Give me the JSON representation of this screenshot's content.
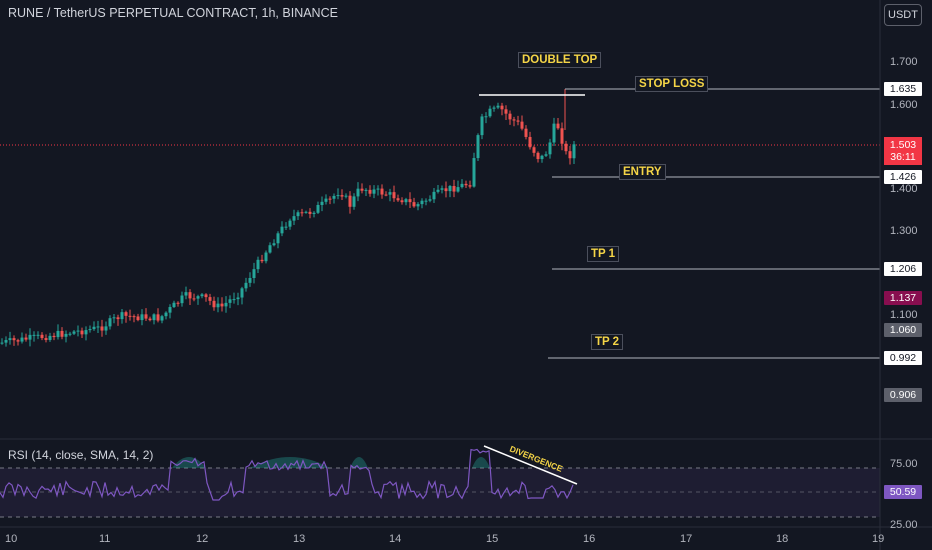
{
  "header": {
    "title": "RUNE / TetherUS PERPETUAL CONTRACT, 1h, BINANCE",
    "currency_button": "USDT"
  },
  "annotations": {
    "double_top": "DOUBLE TOP",
    "stop_loss": "STOP LOSS",
    "entry": "ENTRY",
    "tp1": "TP 1",
    "tp2": "TP 2",
    "divergence": "DIVERGENCE"
  },
  "price_axis": {
    "ticks": [
      "1.700",
      "1.600",
      "1.400",
      "1.300",
      "1.100"
    ],
    "labels": {
      "stop_loss": "1.635",
      "current": "1.503",
      "countdown": "36:11",
      "entry": "1.426",
      "tp1": "1.206",
      "marker_1137": "1.137",
      "marker_1060": "1.060",
      "tp2": "0.992",
      "marker_0906": "0.906"
    }
  },
  "rsi": {
    "title": "RSI (14, close, SMA, 14, 2)",
    "ticks": [
      "75.00",
      "25.00"
    ],
    "value": "50.59"
  },
  "time_axis": {
    "labels": [
      "10",
      "11",
      "12",
      "13",
      "14",
      "15",
      "16",
      "17",
      "18",
      "19"
    ]
  },
  "colors": {
    "background": "#131722",
    "up_candle": "#26a69a",
    "down_candle": "#ef5350",
    "rsi_line": "#7e57c2",
    "annotation_text": "#f5d547",
    "current_price_bg": "#f23645",
    "marker_1137_bg": "#880e4f",
    "marker_grey_bg": "#5d606b"
  }
}
